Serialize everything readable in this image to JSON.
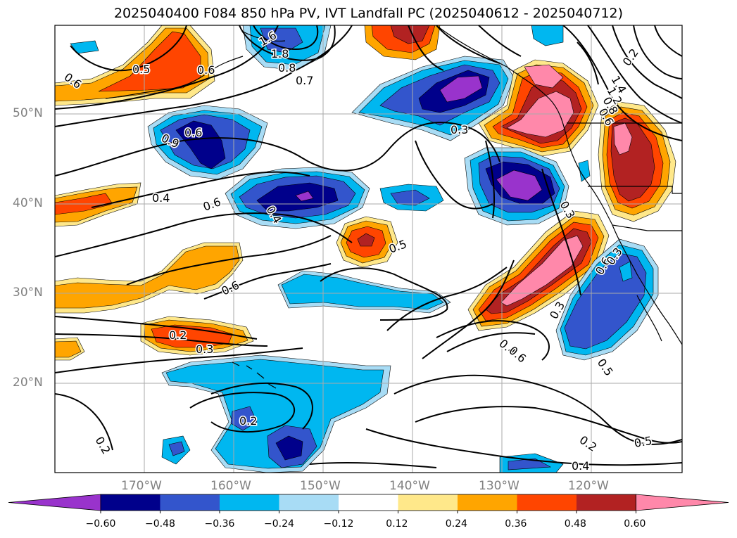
{
  "title": "2025040400 F084 850 hPa PV, IVT Landfall PC (2025040612 - 2025040712)",
  "map": {
    "lat_labels": [
      "50°N",
      "40°N",
      "30°N",
      "20°N"
    ],
    "lon_labels": [
      "170°W",
      "160°W",
      "150°W",
      "140°W",
      "130°W",
      "120°W"
    ],
    "contour_labels": [
      "0.6",
      "0.5",
      "0.6",
      "1.6",
      "1.8",
      "0.8",
      "0.7",
      "0.9",
      "0.6",
      "0.4",
      "0.6",
      "0.4",
      "0.3",
      "1.4",
      "1.2",
      "0.8",
      "0.6",
      "0.6",
      "0.5",
      "0.3",
      "0.6",
      "0.3",
      "0.2",
      "0.2",
      "0.2",
      "0.3",
      "0.4",
      "0.6",
      "0.5",
      "0.2",
      "0.5",
      "0.4",
      "0.2",
      "0.3"
    ]
  },
  "colorbar": {
    "labels": [
      "−0.60",
      "−0.48",
      "−0.36",
      "−0.24",
      "−0.12",
      "0.12",
      "0.24",
      "0.36",
      "0.48",
      "0.60"
    ],
    "colors": [
      "#9933cc",
      "#00008b",
      "#3355cc",
      "#00b7f0",
      "#a8dcf5",
      "#ffffff",
      "#ffe88a",
      "#ffa500",
      "#ff4500",
      "#b22222",
      "#ff88aa"
    ]
  },
  "palette": {
    "neg_purple": "#9933cc",
    "neg_navy": "#00008b",
    "neg_blue": "#3355cc",
    "neg_cyan": "#00b7f0",
    "neg_light": "#a8dcf5",
    "pos_yellow": "#ffe88a",
    "pos_orange": "#ffa500",
    "pos_redorange": "#ff4500",
    "pos_firebrick": "#b22222",
    "pos_pink": "#ff88aa"
  }
}
